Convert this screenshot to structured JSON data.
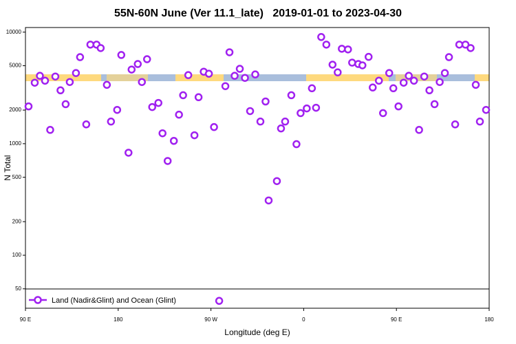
{
  "chart_data": {
    "type": "scatter",
    "title": "55N-60N June (Ver 11.1_late)   2019-01-01 to 2023-04-30",
    "xlabel": "Longitude (deg E)",
    "ylabel": "N Total",
    "log_y": true,
    "xlim": [
      90,
      540
    ],
    "ylim": [
      33.5,
      11000
    ],
    "xticks": [
      {
        "value": 90,
        "label": "90 E"
      },
      180,
      {
        "value": 270,
        "label": "90 W"
      },
      {
        "value": 360,
        "label": "0"
      },
      {
        "value": 450,
        "label": "90 E"
      },
      {
        "value": 540,
        "label": "180"
      }
    ],
    "yticks": [
      50,
      100,
      200,
      500,
      1000,
      2000,
      5000,
      10000
    ],
    "series": [
      {
        "name": "Land (Nadir&Glint) and Ocean (Glint)",
        "color": "#a020f0",
        "x": [
          93,
          99,
          104,
          109,
          114,
          119,
          124,
          129,
          133,
          139,
          143,
          149,
          153,
          159,
          163,
          169,
          173,
          179,
          183,
          190,
          193,
          199,
          203,
          208,
          213,
          219,
          223,
          228,
          234,
          239,
          243,
          248,
          254,
          258,
          263,
          268,
          273,
          278,
          284,
          288,
          293,
          298,
          303,
          308,
          313,
          318,
          323,
          326,
          334,
          338,
          342,
          348,
          353,
          357,
          363,
          368,
          372,
          377,
          382,
          388,
          393,
          397,
          403,
          407,
          413,
          417,
          423,
          427,
          433,
          437,
          443,
          447,
          452,
          457,
          462,
          467,
          472,
          477,
          482,
          487,
          492,
          497,
          501,
          507,
          511,
          517,
          522,
          527,
          531,
          537
        ],
        "values": [
          2160,
          3520,
          4060,
          3670,
          1330,
          4000,
          3010,
          2260,
          3570,
          4300,
          5970,
          1490,
          7730,
          7730,
          7200,
          3370,
          1580,
          2010,
          6240,
          830,
          4620,
          5180,
          3570,
          5720,
          2130,
          2320,
          1240,
          700,
          1060,
          1820,
          2720,
          4120,
          1190,
          2610,
          4420,
          4240,
          1410,
          39,
          3280,
          6600,
          4060,
          4690,
          3890,
          1960,
          4180,
          1580,
          2390,
          310,
          462,
          1370,
          1580,
          2720,
          990,
          1880,
          2070,
          3140,
          2100,
          9048,
          7730,
          5110,
          4360,
          7100,
          7000,
          5330,
          5180,
          5040,
          6000,
          3190,
          3670,
          1880,
          4300,
          3140,
          2160,
          3520,
          4060,
          3670,
          1330,
          4000,
          3010,
          2260,
          3570,
          4300,
          5970,
          1490,
          7730,
          7730,
          7200,
          3370,
          1580,
          2010
        ]
      }
    ]
  }
}
